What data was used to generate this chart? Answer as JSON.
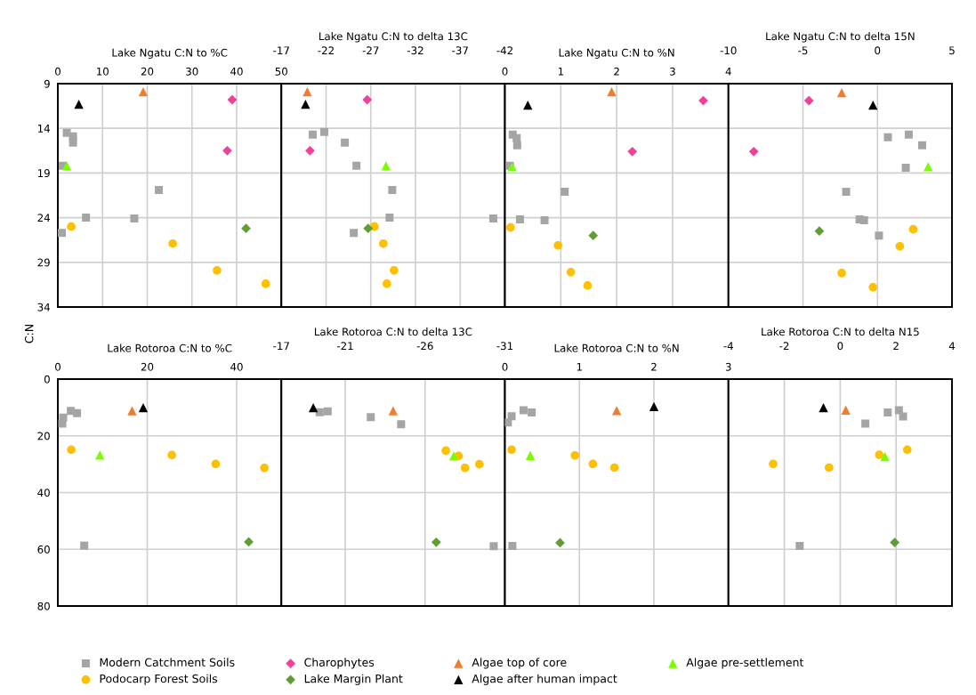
{
  "chart_data": [
    {
      "type": "scatter",
      "title": "Lake Ngatu C:N to %C",
      "xlim": [
        0,
        50
      ],
      "xticks": [
        0,
        10,
        20,
        30,
        40,
        50
      ],
      "ylim": [
        34,
        9
      ],
      "yticks": [
        9,
        14,
        19,
        24,
        29,
        34
      ],
      "grid": true,
      "legend": "bottom",
      "series": [
        {
          "name": "Modern Catchment Soils",
          "color": "#a5a5a5",
          "marker": "square",
          "x": [
            2.0,
            3.4,
            3.4,
            1.1,
            22.6,
            6.3,
            17.1,
            0.9
          ],
          "values": [
            14.5,
            14.9,
            15.6,
            18.2,
            20.9,
            24.0,
            24.1,
            25.7
          ]
        },
        {
          "name": "Podocarp Forest Soils",
          "color": "#ffc000",
          "marker": "circle",
          "x": [
            3.0,
            25.7,
            35.6,
            46.5
          ],
          "values": [
            25.0,
            26.9,
            29.9,
            31.4
          ]
        },
        {
          "name": "Charophytes",
          "color": "#f2409a",
          "marker": "diamond",
          "x": [
            39.0,
            37.9
          ],
          "values": [
            10.8,
            16.5
          ]
        },
        {
          "name": "Lake Margin Plant",
          "color": "#5e9e32",
          "marker": "diamond",
          "x": [
            42.1
          ],
          "values": [
            25.2
          ]
        },
        {
          "name": "Algae top of core",
          "color": "#ed7d31",
          "marker": "triangle",
          "x": [
            19.1
          ],
          "values": [
            9.9
          ]
        },
        {
          "name": "Algae after human impact",
          "color": "#000000",
          "marker": "triangle",
          "x": [
            4.7
          ],
          "values": [
            11.3
          ]
        },
        {
          "name": "Algae pre-settlement",
          "color": "#7cfc00",
          "marker": "triangle",
          "x": [
            2.0
          ],
          "values": [
            18.2
          ]
        }
      ]
    },
    {
      "type": "scatter",
      "title": "Lake Ngatu C:N to delta 13C",
      "xlim": [
        -17,
        -42
      ],
      "xticks": [
        -17,
        -22,
        -27,
        -32,
        -37,
        -42
      ],
      "ylim": [
        34,
        9
      ],
      "yticks": [
        9,
        14,
        19,
        24,
        29,
        34
      ],
      "grid": true,
      "tick_labels": "x",
      "series": [
        {
          "color": "#a5a5a5",
          "marker": "square",
          "x": [
            -20.5,
            -21.8,
            -24.1,
            -25.4,
            -29.4,
            -29.1,
            -40.7,
            -25.1
          ],
          "values": [
            14.7,
            14.4,
            15.6,
            18.2,
            20.9,
            24.0,
            24.1,
            25.7
          ]
        },
        {
          "color": "#ffc000",
          "marker": "circle",
          "x": [
            -27.4,
            -28.4,
            -29.6,
            -28.8
          ],
          "values": [
            25.0,
            26.9,
            29.9,
            31.4
          ]
        },
        {
          "color": "#f2409a",
          "marker": "diamond",
          "x": [
            -26.6,
            -20.2
          ],
          "values": [
            10.8,
            16.5
          ]
        },
        {
          "color": "#5e9e32",
          "marker": "diamond",
          "x": [
            -26.7
          ],
          "values": [
            25.2
          ]
        },
        {
          "color": "#ed7d31",
          "marker": "triangle",
          "x": [
            -19.9
          ],
          "values": [
            9.9
          ]
        },
        {
          "color": "#000000",
          "marker": "triangle",
          "x": [
            -19.7
          ],
          "values": [
            11.3
          ]
        },
        {
          "color": "#7cfc00",
          "marker": "triangle",
          "x": [
            -28.7
          ],
          "values": [
            18.2
          ]
        }
      ]
    },
    {
      "type": "scatter",
      "title": "Lake Ngatu C:N to %N",
      "xlim": [
        0,
        4
      ],
      "xticks": [
        0,
        1,
        2,
        3,
        4
      ],
      "ylim": [
        34,
        9
      ],
      "yticks": [
        9,
        14,
        19,
        24,
        29,
        34
      ],
      "grid": true,
      "tick_labels": "x",
      "series": [
        {
          "color": "#a5a5a5",
          "marker": "square",
          "x": [
            0.14,
            0.21,
            0.22,
            0.09,
            1.07,
            0.27,
            0.71
          ],
          "values": [
            14.7,
            15.1,
            15.9,
            18.2,
            21.1,
            24.2,
            24.3
          ]
        },
        {
          "color": "#ffc000",
          "marker": "circle",
          "x": [
            0.1,
            0.95,
            1.18,
            1.48
          ],
          "values": [
            25.1,
            27.1,
            30.1,
            31.6
          ]
        },
        {
          "color": "#f2409a",
          "marker": "diamond",
          "x": [
            3.55,
            2.28
          ],
          "values": [
            10.9,
            16.6
          ]
        },
        {
          "color": "#5e9e32",
          "marker": "diamond",
          "x": [
            1.58
          ],
          "values": [
            26.0
          ]
        },
        {
          "color": "#ed7d31",
          "marker": "triangle",
          "x": [
            1.91
          ],
          "values": [
            9.9
          ]
        },
        {
          "color": "#000000",
          "marker": "triangle",
          "x": [
            0.41
          ],
          "values": [
            11.4
          ]
        },
        {
          "color": "#7cfc00",
          "marker": "triangle",
          "x": [
            0.13
          ],
          "values": [
            18.3
          ]
        }
      ]
    },
    {
      "type": "scatter",
      "title": "Lake Ngatu C:N to delta 15N",
      "xlim": [
        -10,
        5
      ],
      "xticks": [
        -10,
        -5,
        0,
        5
      ],
      "ylim": [
        34,
        9
      ],
      "yticks": [
        9,
        14,
        19,
        24,
        29,
        34
      ],
      "grid": true,
      "tick_labels": "x",
      "series": [
        {
          "color": "#a5a5a5",
          "marker": "square",
          "x": [
            0.7,
            2.1,
            3.0,
            1.9,
            -2.1,
            -1.2,
            -0.9,
            0.1
          ],
          "values": [
            15.0,
            14.7,
            15.9,
            18.4,
            21.1,
            24.2,
            24.3,
            26.0
          ]
        },
        {
          "color": "#ffc000",
          "marker": "circle",
          "x": [
            2.4,
            1.5,
            -2.4,
            -0.3
          ],
          "values": [
            25.3,
            27.2,
            30.2,
            31.8
          ]
        },
        {
          "color": "#f2409a",
          "marker": "diamond",
          "x": [
            -4.6,
            -8.3
          ],
          "values": [
            10.9,
            16.6
          ]
        },
        {
          "color": "#5e9e32",
          "marker": "diamond",
          "x": [
            -3.9
          ],
          "values": [
            25.5
          ]
        },
        {
          "color": "#ed7d31",
          "marker": "triangle",
          "x": [
            -2.4
          ],
          "values": [
            10.0
          ]
        },
        {
          "color": "#000000",
          "marker": "triangle",
          "x": [
            -0.3
          ],
          "values": [
            11.4
          ]
        },
        {
          "color": "#7cfc00",
          "marker": "triangle",
          "x": [
            3.4
          ],
          "values": [
            18.3
          ]
        }
      ]
    },
    {
      "type": "scatter",
      "title": "Lake Rotoroa C:N to %C",
      "ylabel": "C:N",
      "xlim": [
        0,
        50
      ],
      "xticks": [
        0,
        20,
        40
      ],
      "ylim": [
        80,
        0
      ],
      "yticks": [
        0,
        20,
        40,
        60,
        80
      ],
      "grid": true,
      "series": [
        {
          "color": "#a5a5a5",
          "marker": "square",
          "x": [
            1.0,
            1.2,
            2.9,
            4.3,
            5.9
          ],
          "values": [
            15.7,
            13.6,
            11.2,
            12.0,
            58.7
          ]
        },
        {
          "color": "#ffc000",
          "marker": "circle",
          "x": [
            3.0,
            25.5,
            35.3,
            46.2
          ],
          "values": [
            24.9,
            26.8,
            29.9,
            31.3
          ]
        },
        {
          "color": "#5e9e32",
          "marker": "diamond",
          "x": [
            42.7
          ],
          "values": [
            57.4
          ]
        },
        {
          "color": "#ed7d31",
          "marker": "triangle",
          "x": [
            16.6
          ],
          "values": [
            11.2
          ]
        },
        {
          "color": "#000000",
          "marker": "triangle",
          "x": [
            19.1
          ],
          "values": [
            10.1
          ]
        },
        {
          "color": "#7cfc00",
          "marker": "triangle",
          "x": [
            9.4
          ],
          "values": [
            26.8
          ]
        }
      ]
    },
    {
      "type": "scatter",
      "title": "Lake Rotoroa C:N to delta 13C",
      "xlim": [
        -17,
        -31
      ],
      "xticks": [
        -17,
        -21,
        -26,
        -31
      ],
      "ylim": [
        80,
        0
      ],
      "yticks": [
        0,
        20,
        40,
        60,
        80
      ],
      "grid": true,
      "tick_labels": "x",
      "series": [
        {
          "color": "#a5a5a5",
          "marker": "square",
          "x": [
            -19.4,
            -19.9,
            -22.6,
            -24.5,
            -30.3
          ],
          "values": [
            11.7,
            11.4,
            13.4,
            15.9,
            58.9
          ]
        },
        {
          "color": "#ffc000",
          "marker": "circle",
          "x": [
            -27.3,
            -28.1,
            -28.5,
            -29.4
          ],
          "values": [
            25.2,
            27.1,
            31.3,
            30.0
          ]
        },
        {
          "color": "#5e9e32",
          "marker": "diamond",
          "x": [
            -26.7
          ],
          "values": [
            57.5
          ]
        },
        {
          "color": "#ed7d31",
          "marker": "triangle",
          "x": [
            -24.0
          ],
          "values": [
            11.2
          ]
        },
        {
          "color": "#000000",
          "marker": "triangle",
          "x": [
            -19.0
          ],
          "values": [
            10.1
          ]
        },
        {
          "color": "#7cfc00",
          "marker": "triangle",
          "x": [
            -27.8
          ],
          "values": [
            27.1
          ]
        }
      ]
    },
    {
      "type": "scatter",
      "title": "Lake Rotoroa C:N to %N",
      "xlim": [
        0,
        3
      ],
      "xticks": [
        0,
        1,
        2,
        3
      ],
      "ylim": [
        80,
        0
      ],
      "yticks": [
        0,
        20,
        40,
        60,
        80
      ],
      "grid": true,
      "tick_labels": "x",
      "series": [
        {
          "color": "#a5a5a5",
          "marker": "square",
          "x": [
            0.04,
            0.09,
            0.25,
            0.36,
            0.1
          ],
          "values": [
            15.3,
            13.1,
            11.0,
            11.8,
            58.8
          ]
        },
        {
          "color": "#ffc000",
          "marker": "circle",
          "x": [
            0.09,
            0.94,
            1.18,
            1.47
          ],
          "values": [
            24.9,
            26.9,
            29.9,
            31.2
          ]
        },
        {
          "color": "#5e9e32",
          "marker": "diamond",
          "x": [
            0.74
          ],
          "values": [
            57.7
          ]
        },
        {
          "color": "#ed7d31",
          "marker": "triangle",
          "x": [
            1.5
          ],
          "values": [
            11.1
          ]
        },
        {
          "color": "#000000",
          "marker": "triangle",
          "x": [
            2.0
          ],
          "values": [
            9.7
          ]
        },
        {
          "color": "#7cfc00",
          "marker": "triangle",
          "x": [
            0.34
          ],
          "values": [
            26.9
          ]
        }
      ]
    },
    {
      "type": "scatter",
      "title": "Lake Rotoroa C:N to delta N15",
      "xlim": [
        -4,
        4
      ],
      "xticks": [
        -4,
        -2,
        0,
        2,
        4
      ],
      "ylim": [
        80,
        0
      ],
      "yticks": [
        0,
        20,
        40,
        60,
        80
      ],
      "grid": true,
      "tick_labels": "x",
      "series": [
        {
          "color": "#a5a5a5",
          "marker": "square",
          "x": [
            0.9,
            1.7,
            2.1,
            2.25,
            -1.45
          ],
          "values": [
            15.7,
            11.8,
            11.0,
            13.2,
            58.8
          ]
        },
        {
          "color": "#ffc000",
          "marker": "circle",
          "x": [
            -2.4,
            -0.4,
            1.4,
            2.4
          ],
          "values": [
            29.9,
            31.2,
            26.7,
            24.9
          ]
        },
        {
          "color": "#5e9e32",
          "marker": "diamond",
          "x": [
            1.95
          ],
          "values": [
            57.6
          ]
        },
        {
          "color": "#ed7d31",
          "marker": "triangle",
          "x": [
            0.2
          ],
          "values": [
            10.9
          ]
        },
        {
          "color": "#000000",
          "marker": "triangle",
          "x": [
            -0.6
          ],
          "values": [
            10.1
          ]
        },
        {
          "color": "#7cfc00",
          "marker": "triangle",
          "x": [
            1.6
          ],
          "values": [
            27.3
          ]
        }
      ]
    }
  ]
}
